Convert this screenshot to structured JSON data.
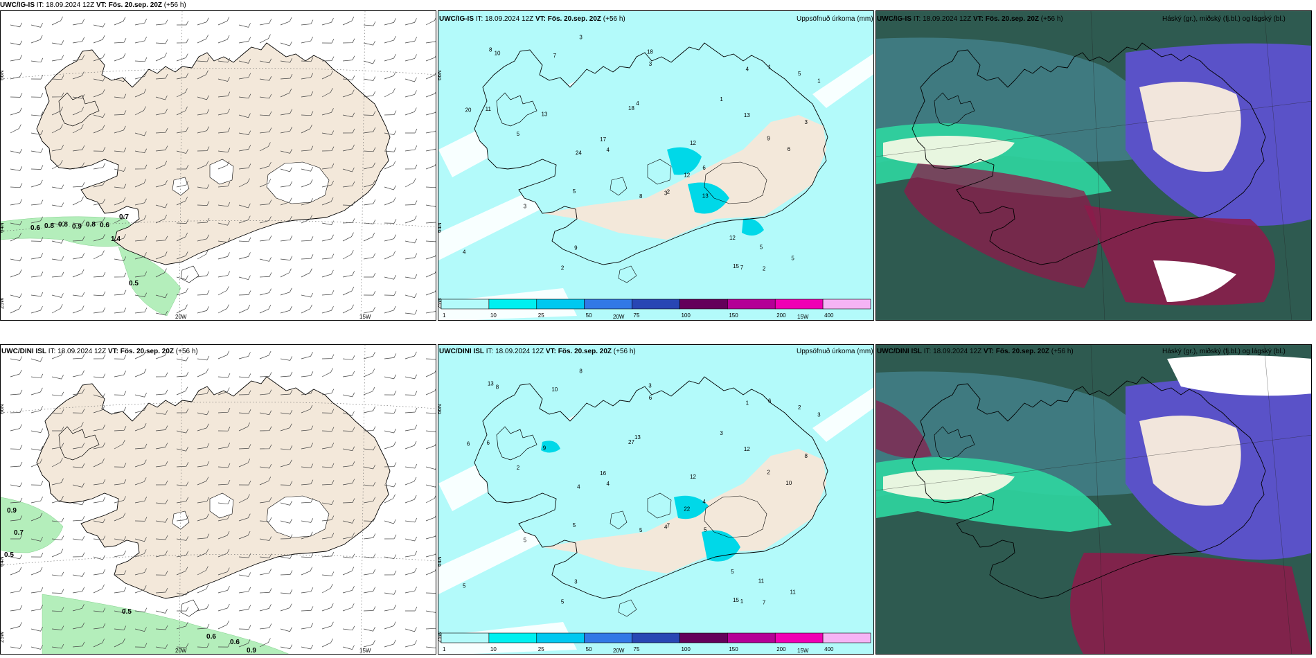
{
  "panels": [
    {
      "id": "r1c1",
      "model": "UWC/IG-IS",
      "it_label": "IT:",
      "it": "18.09.2024 12Z",
      "vt_label": "VT:",
      "vt": "Fös. 20.sep. 20Z",
      "lead": "(+56 h)",
      "right": ""
    },
    {
      "id": "r1c2",
      "model": "UWC/IG-IS",
      "it_label": "IT:",
      "it": "18.09.2024 12Z",
      "vt_label": "VT:",
      "vt": "Fös. 20.sep. 20Z",
      "lead": "(+56 h)",
      "right": "Uppsöfnuð úrkoma (mm)"
    },
    {
      "id": "r1c3",
      "model": "UWC/IG-IS",
      "it_label": "IT:",
      "it": "18.09.2024 12Z",
      "vt_label": "VT:",
      "vt": "Fös. 20.sep. 20Z",
      "lead": "(+56 h)",
      "right": "Háský (gr.), miðský (fj.bl.) og lágský (bl.)"
    },
    {
      "id": "r2c1",
      "model": "UWC/DINI ISL",
      "it_label": "IT:",
      "it": "18.09.2024 12Z",
      "vt_label": "VT:",
      "vt": "Fös. 20.sep. 20Z",
      "lead": "(+56 h)",
      "right": ""
    },
    {
      "id": "r2c2",
      "model": "UWC/DINI ISL",
      "it_label": "IT:",
      "it": "18.09.2024 12Z",
      "vt_label": "VT:",
      "vt": "Fös. 20.sep. 20Z",
      "lead": "(+56 h)",
      "right": "Uppsöfnuð úrkoma (mm)"
    },
    {
      "id": "r2c3",
      "model": "UWC/DINI ISL",
      "it_label": "IT:",
      "it": "18.09.2024 12Z",
      "vt_label": "VT:",
      "vt": "Fös. 20.sep. 20Z",
      "lead": "(+56 h)",
      "right": "Háský (gr.), miðský (fj.bl.) og lágský (bl.)"
    }
  ],
  "grid_labels": {
    "lat_n": "66N",
    "lat_s": "64N",
    "lon_w25": "25W",
    "lon_w20": "20W",
    "lon_w15": "15W"
  },
  "colorbar": {
    "ticks": [
      "1",
      "10",
      "25",
      "50",
      "75",
      "100",
      "150",
      "200",
      "400"
    ],
    "colors": [
      "#b3fafa",
      "#00f0f0",
      "#00c8f0",
      "#3278e6",
      "#2846b4",
      "#64005a",
      "#b40096",
      "#f000b4",
      "#f5b4f5"
    ]
  },
  "colors": {
    "land": "#f3e8da",
    "sea_precip": "#b3fafa",
    "precip_high": "#00d8e8",
    "wind_green": "#a8ecb0",
    "cloud_dark": "#2e5a50",
    "cloud_teal": "#2fd6a0",
    "cloud_purple": "#5a52c8",
    "cloud_red": "#8e1a4a"
  },
  "precip_labels_r1": [
    "4",
    "11",
    "3",
    "3",
    "5",
    "4",
    "5",
    "8",
    "10",
    "12",
    "15",
    "17",
    "18",
    "12",
    "13",
    "12",
    "20",
    "7",
    "13",
    "24",
    "18",
    "5",
    "9",
    "7",
    "8",
    "6",
    "3",
    "1",
    "2",
    "3",
    "2",
    "1",
    "4",
    "5",
    "6",
    "9",
    "5",
    "13",
    "3",
    "2",
    "4",
    "1"
  ],
  "precip_labels_r2": [
    "4",
    "6",
    "5",
    "8",
    "5",
    "13",
    "11",
    "13",
    "8",
    "12",
    "15",
    "16",
    "27",
    "22",
    "5",
    "5",
    "6",
    "10",
    "12",
    "4",
    "3",
    "2",
    "2",
    "1",
    "5",
    "10",
    "8",
    "6",
    "7",
    "4",
    "5",
    "3",
    "1",
    "2",
    "4",
    "3",
    "11",
    "9",
    "6",
    "7",
    "5",
    "3"
  ],
  "wind_labels_r1": [
    "0.6",
    "0.8",
    "0.8",
    "0.9",
    "0.8",
    "0.6",
    "0.7",
    "1.4",
    "0.5"
  ],
  "wind_labels_r2": [
    "0.9",
    "0.7",
    "0.5",
    "0.5",
    "0.6",
    "0.6",
    "0.9"
  ]
}
